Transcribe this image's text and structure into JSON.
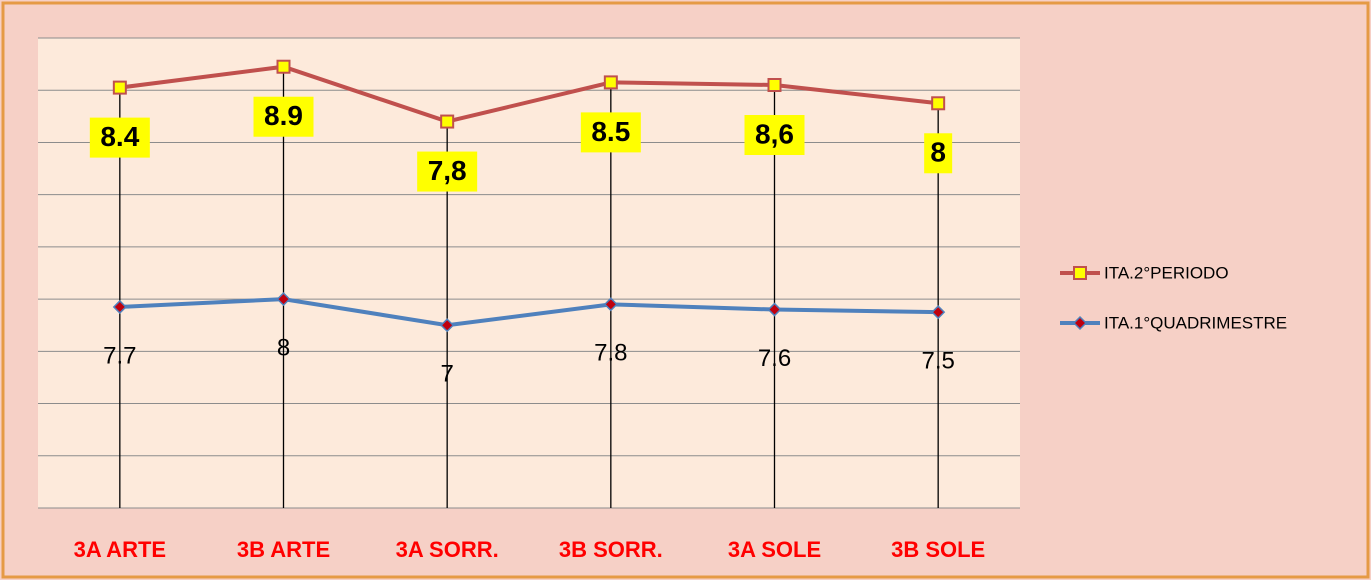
{
  "chart_data": {
    "type": "line",
    "stacked": true,
    "categories": [
      "3A ARTE",
      "3B ARTE",
      "3A SORR.",
      "3B SORR.",
      "3A SOLE",
      "3B SOLE"
    ],
    "series": [
      {
        "name": "ITA.1°QUADRIMESTRE",
        "color": "#4f81bd",
        "marker_color": "#c0000e",
        "marker": "diamond",
        "values": [
          7.7,
          8,
          7,
          7.8,
          7.6,
          7.5
        ]
      },
      {
        "name": "ITA.2°PERIODO",
        "color": "#c0504d",
        "marker_color": "#ffff00",
        "marker": "square",
        "values": [
          8.4,
          8.9,
          7.8,
          8.5,
          8.6,
          8
        ],
        "value_labels": [
          "8.4",
          "8.9",
          "7,8",
          "8.5",
          "8,6",
          "8"
        ]
      }
    ],
    "ylim": [
      0,
      18
    ],
    "yticks": [
      0,
      2,
      4,
      6,
      8,
      10,
      12,
      14,
      16,
      18
    ],
    "grid": true,
    "drop_lines": true,
    "legend": "right"
  }
}
